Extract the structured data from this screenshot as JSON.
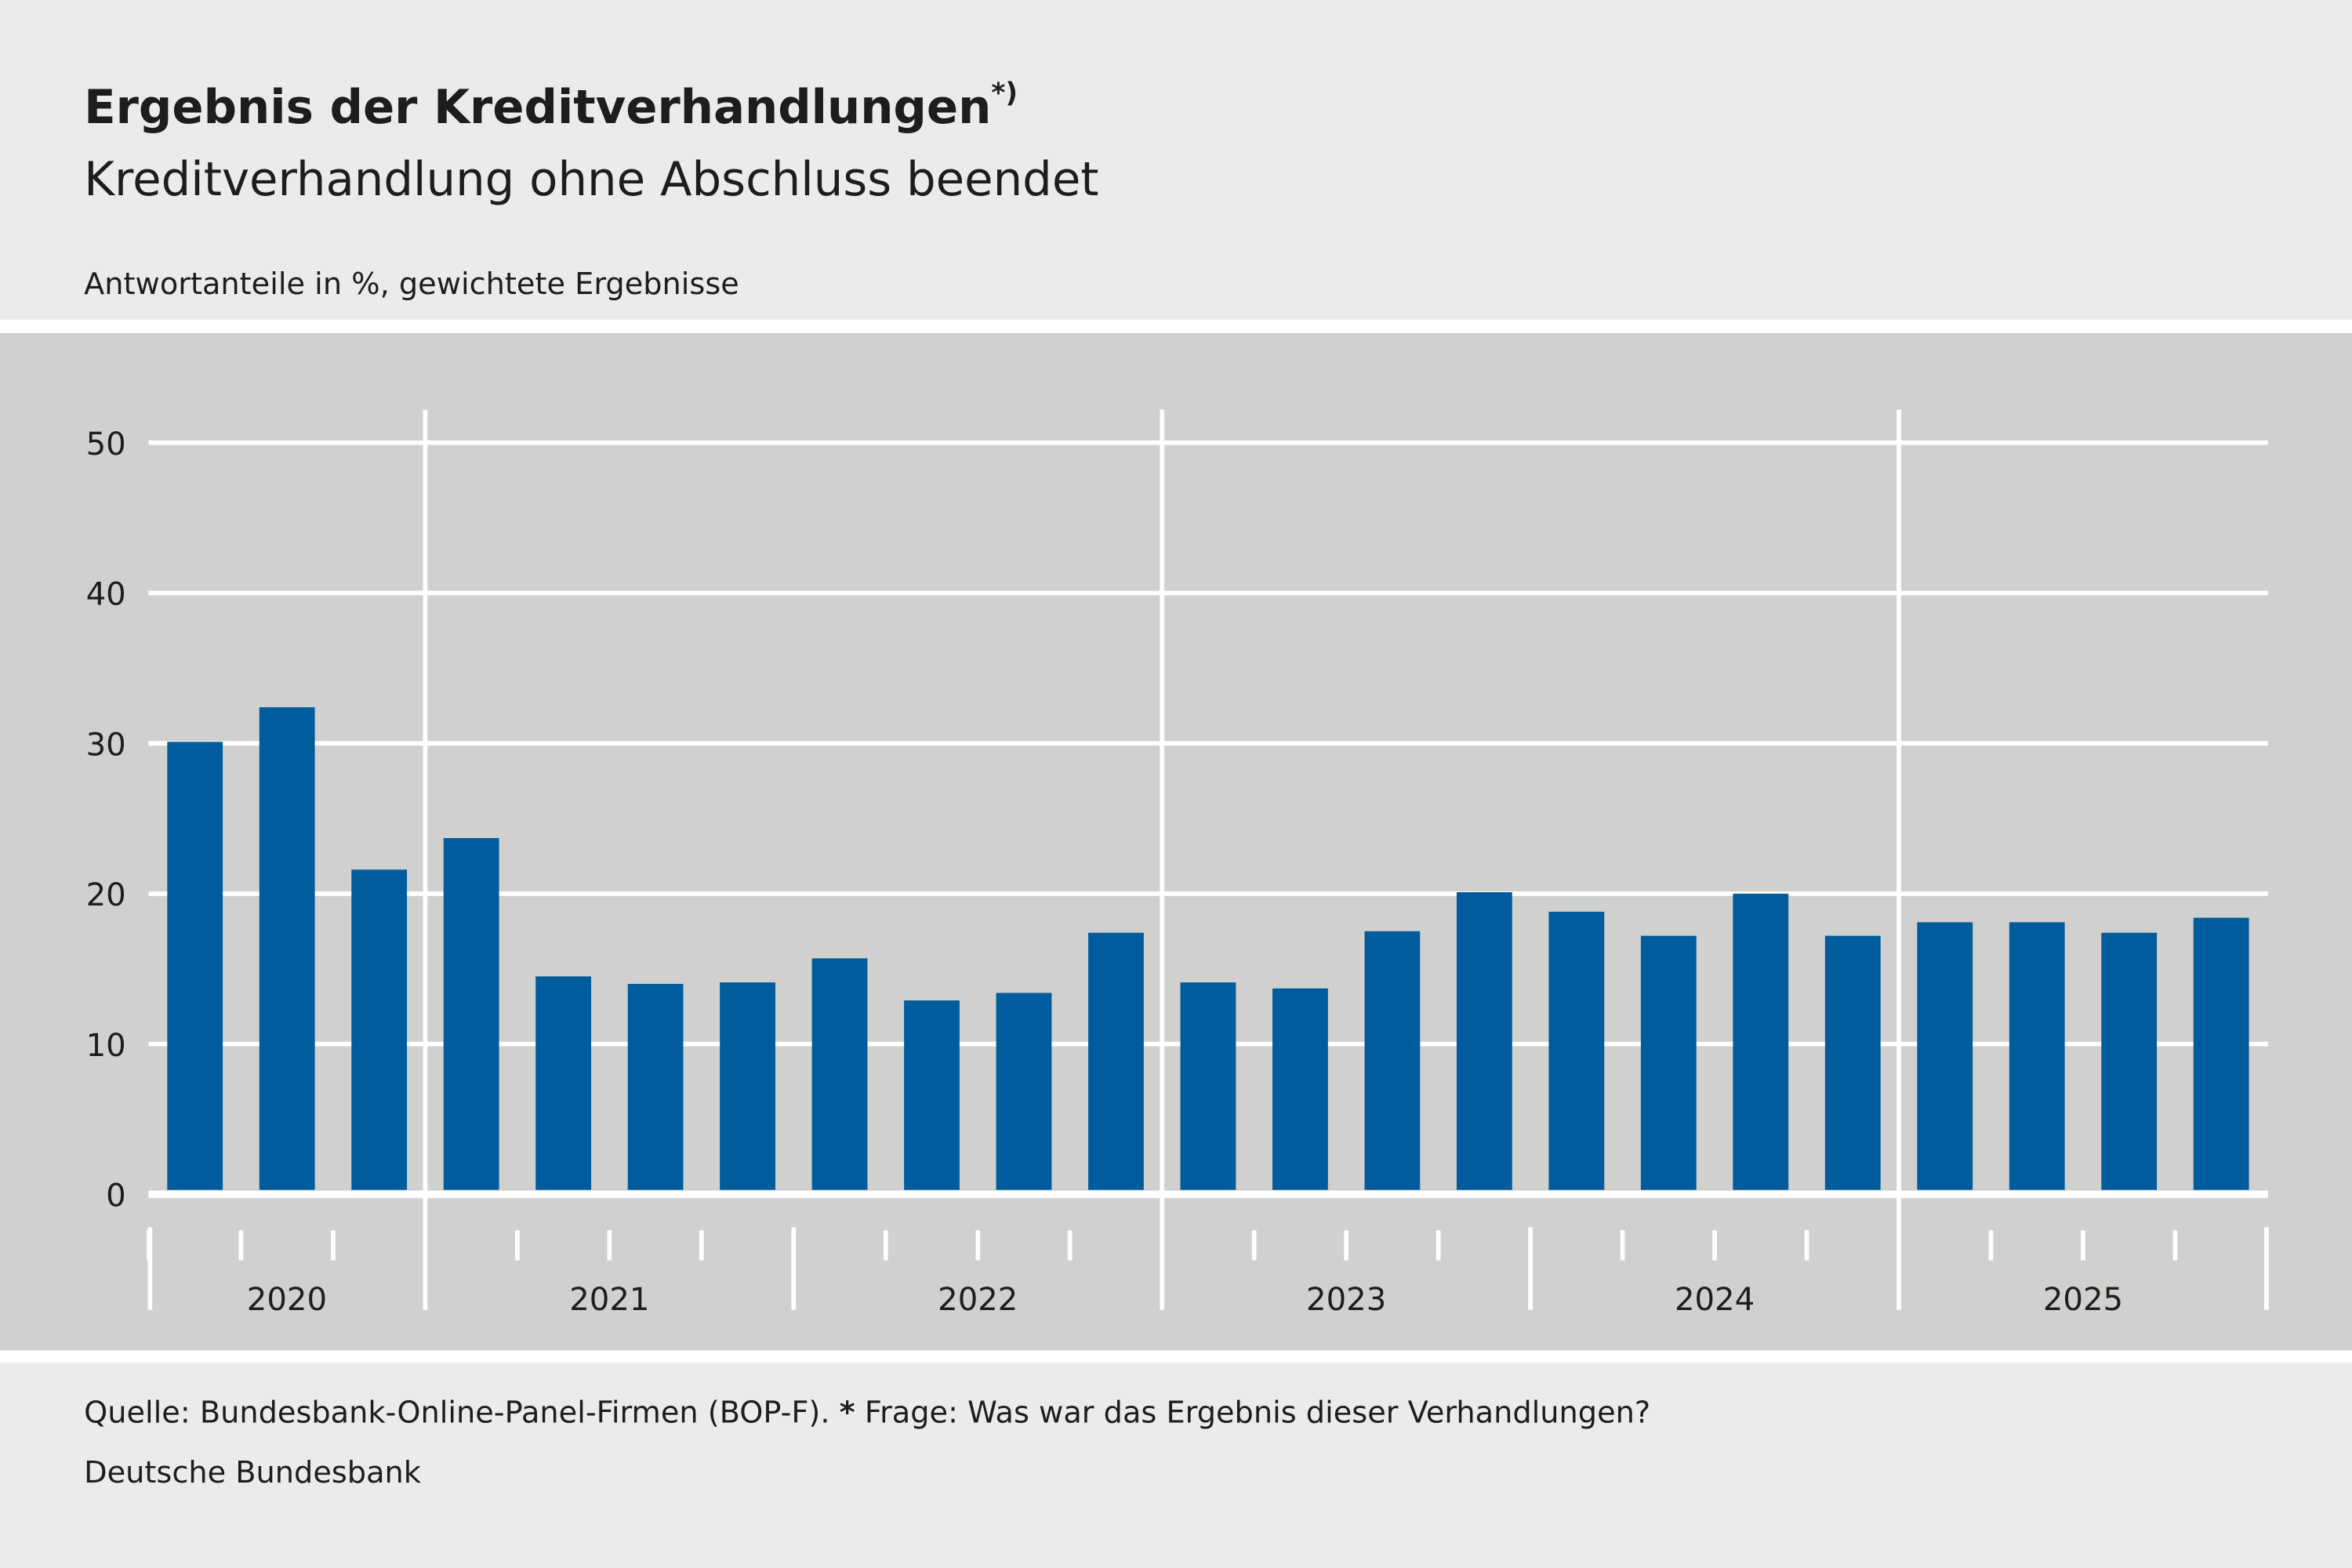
{
  "header": {
    "title": "Ergebnis der Kreditverhandlungen",
    "title_footnote_mark": "*)",
    "subtitle": "Kreditverhandlung ohne Abschluss beendet",
    "unit_note": "Antwortanteile in %, gewichtete Ergebnisse"
  },
  "footer": {
    "source_prefix": "Quelle: Bundesbank-Online-Panel-Firmen (BOP-F). ",
    "source_star": "*",
    "source_question": " Frage: Was war das Ergebnis dieser Verhandlungen?",
    "publisher": "Deutsche Bundesbank"
  },
  "colors": {
    "bar": "#005c9c",
    "plot_bg": "#d0d0ce",
    "page_bg": "#ebebeb",
    "grid": "#ffffff"
  },
  "chart_data": {
    "type": "bar",
    "title": "Ergebnis der Kreditverhandlungen",
    "subtitle": "Kreditverhandlung ohne Abschluss beendet",
    "ylabel": "Antwortanteile in %, gewichtete Ergebnisse",
    "ylim": [
      0,
      50
    ],
    "yticks": [
      "0",
      "10",
      "20",
      "30",
      "40",
      "50"
    ],
    "grid": true,
    "year_labels": [
      "2020",
      "2021",
      "2022",
      "2023",
      "2024",
      "2025"
    ],
    "categories": [
      "2020 Q2",
      "2020 Q3",
      "2020 Q4",
      "2021 Q1",
      "2021 Q2",
      "2021 Q3",
      "2021 Q4",
      "2022 Q1",
      "2022 Q2",
      "2022 Q3",
      "2022 Q4",
      "2023 Q1",
      "2023 Q2",
      "2023 Q3",
      "2023 Q4",
      "2024 Q1",
      "2024 Q2",
      "2024 Q3",
      "2024 Q4",
      "2025 Q1",
      "2025 Q2",
      "2025 Q3",
      "2025 Q4"
    ],
    "values": [
      30.1,
      32.4,
      21.6,
      23.7,
      14.5,
      14.0,
      14.1,
      15.7,
      12.9,
      13.4,
      17.4,
      14.1,
      13.7,
      17.5,
      20.1,
      18.8,
      17.2,
      20.0,
      17.2,
      18.1,
      18.1,
      17.4,
      18.4
    ]
  }
}
